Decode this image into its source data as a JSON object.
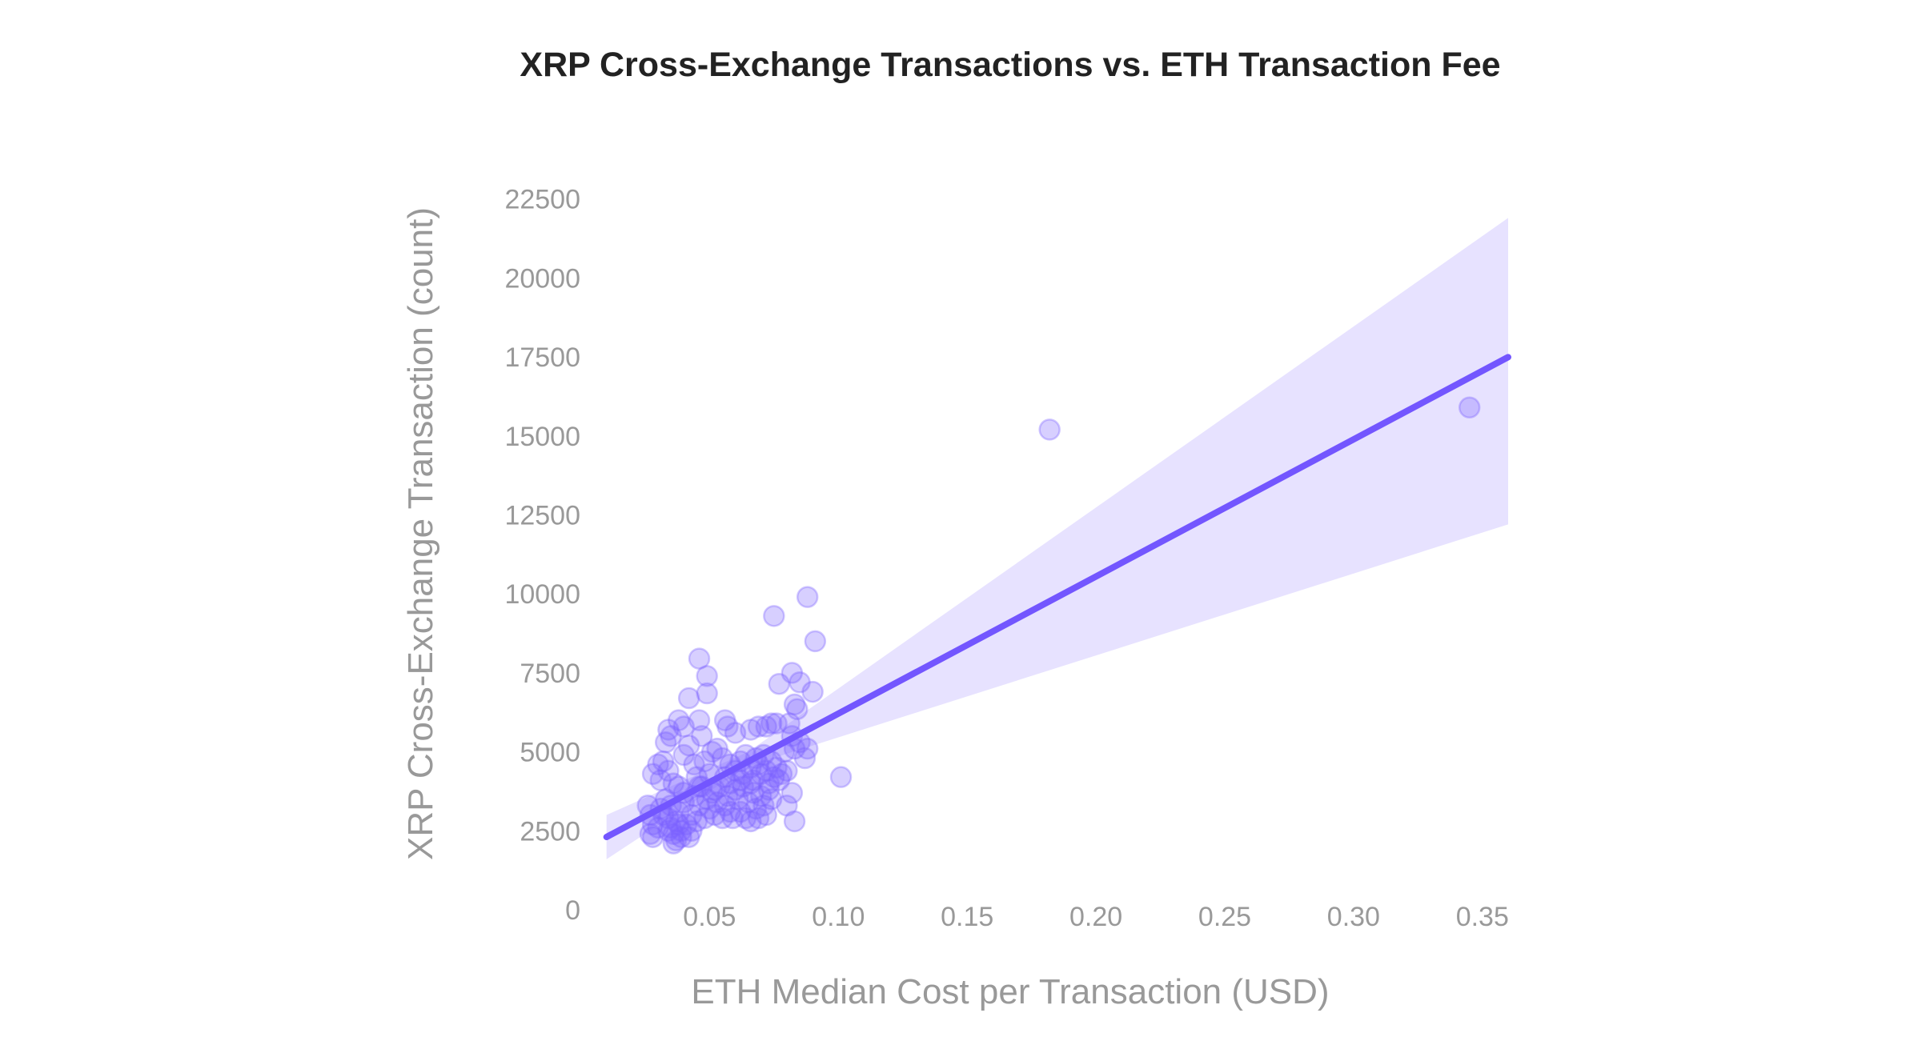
{
  "chart_data": {
    "type": "scatter",
    "title": "XRP Cross-Exchange Transactions vs. ETH Transaction Fee",
    "xlabel": "ETH Median Cost per Transaction (USD)",
    "ylabel": "XRP Cross-Exchange Transaction (count)",
    "xlim": [
      0,
      0.36
    ],
    "ylim": [
      0,
      22500
    ],
    "xticks": [
      "0.05",
      "0.10",
      "0.15",
      "0.20",
      "0.25",
      "0.30",
      "0.35"
    ],
    "xtick_values": [
      0.05,
      0.1,
      0.15,
      0.2,
      0.25,
      0.3,
      0.35
    ],
    "yticks": [
      "0",
      "2500",
      "5000",
      "7500",
      "10000",
      "12500",
      "15000",
      "17500",
      "20000",
      "22500"
    ],
    "ytick_values": [
      0,
      2500,
      5000,
      7500,
      10000,
      12500,
      15000,
      17500,
      20000,
      22500
    ],
    "grid": false,
    "colors": {
      "points": "#7b61ff",
      "line": "#7356ff",
      "band": "#e7e2ff",
      "text": "#999999",
      "title": "#222222"
    },
    "regression": {
      "x_range": [
        0.01,
        0.36
      ],
      "intercept": 1870,
      "slope": 43400,
      "ci_lower": [
        [
          0.01,
          1600
        ],
        [
          0.065,
          4550
        ],
        [
          0.36,
          12200
        ]
      ],
      "ci_upper": [
        [
          0.01,
          3000
        ],
        [
          0.065,
          5000
        ],
        [
          0.36,
          21900
        ]
      ]
    },
    "points": [
      [
        0.182,
        15200
      ],
      [
        0.345,
        15900
      ],
      [
        0.101,
        4200
      ],
      [
        0.088,
        9900
      ],
      [
        0.075,
        9300
      ],
      [
        0.091,
        8500
      ],
      [
        0.046,
        7950
      ],
      [
        0.049,
        7400
      ],
      [
        0.049,
        6850
      ],
      [
        0.042,
        6700
      ],
      [
        0.082,
        7500
      ],
      [
        0.077,
        7150
      ],
      [
        0.085,
        7200
      ],
      [
        0.09,
        6900
      ],
      [
        0.083,
        6500
      ],
      [
        0.084,
        6350
      ],
      [
        0.083,
        2800
      ],
      [
        0.082,
        3700
      ],
      [
        0.08,
        3300
      ],
      [
        0.034,
        5700
      ],
      [
        0.035,
        5500
      ],
      [
        0.033,
        5300
      ],
      [
        0.038,
        6000
      ],
      [
        0.04,
        5800
      ],
      [
        0.046,
        6000
      ],
      [
        0.047,
        5500
      ],
      [
        0.056,
        6000
      ],
      [
        0.057,
        5800
      ],
      [
        0.06,
        5600
      ],
      [
        0.066,
        5700
      ],
      [
        0.069,
        5800
      ],
      [
        0.072,
        5800
      ],
      [
        0.074,
        5900
      ],
      [
        0.076,
        5900
      ],
      [
        0.081,
        5900
      ],
      [
        0.082,
        5500
      ],
      [
        0.085,
        5300
      ],
      [
        0.088,
        5100
      ],
      [
        0.087,
        4800
      ],
      [
        0.08,
        4400
      ],
      [
        0.078,
        4300
      ],
      [
        0.075,
        4200
      ],
      [
        0.083,
        5100
      ],
      [
        0.079,
        5000
      ],
      [
        0.028,
        4300
      ],
      [
        0.03,
        4600
      ],
      [
        0.032,
        4700
      ],
      [
        0.031,
        4100
      ],
      [
        0.034,
        4400
      ],
      [
        0.036,
        4000
      ],
      [
        0.038,
        3900
      ],
      [
        0.04,
        4900
      ],
      [
        0.042,
        5200
      ],
      [
        0.044,
        4600
      ],
      [
        0.045,
        4200
      ],
      [
        0.048,
        4700
      ],
      [
        0.05,
        4300
      ],
      [
        0.051,
        5000
      ],
      [
        0.053,
        5100
      ],
      [
        0.055,
        4800
      ],
      [
        0.056,
        4200
      ],
      [
        0.058,
        4600
      ],
      [
        0.06,
        4400
      ],
      [
        0.062,
        4700
      ],
      [
        0.063,
        4300
      ],
      [
        0.064,
        4900
      ],
      [
        0.066,
        4500
      ],
      [
        0.067,
        4100
      ],
      [
        0.068,
        4800
      ],
      [
        0.069,
        4600
      ],
      [
        0.07,
        4300
      ],
      [
        0.071,
        4900
      ],
      [
        0.072,
        4400
      ],
      [
        0.073,
        4000
      ],
      [
        0.074,
        4700
      ],
      [
        0.076,
        4500
      ],
      [
        0.077,
        4100
      ],
      [
        0.026,
        3300
      ],
      [
        0.027,
        3000
      ],
      [
        0.028,
        2700
      ],
      [
        0.027,
        2400
      ],
      [
        0.028,
        2300
      ],
      [
        0.03,
        2600
      ],
      [
        0.031,
        3200
      ],
      [
        0.033,
        3500
      ],
      [
        0.034,
        2900
      ],
      [
        0.035,
        2600
      ],
      [
        0.036,
        2400
      ],
      [
        0.036,
        2100
      ],
      [
        0.037,
        2800
      ],
      [
        0.038,
        3100
      ],
      [
        0.039,
        2500
      ],
      [
        0.04,
        3400
      ],
      [
        0.041,
        2700
      ],
      [
        0.042,
        2300
      ],
      [
        0.043,
        3000
      ],
      [
        0.044,
        3600
      ],
      [
        0.045,
        2800
      ],
      [
        0.046,
        3300
      ],
      [
        0.047,
        3900
      ],
      [
        0.048,
        2900
      ],
      [
        0.049,
        3500
      ],
      [
        0.05,
        3200
      ],
      [
        0.051,
        3700
      ],
      [
        0.052,
        3000
      ],
      [
        0.053,
        3400
      ],
      [
        0.054,
        3900
      ],
      [
        0.055,
        2900
      ],
      [
        0.056,
        3300
      ],
      [
        0.057,
        3600
      ],
      [
        0.058,
        3100
      ],
      [
        0.059,
        2900
      ],
      [
        0.06,
        3800
      ],
      [
        0.061,
        3500
      ],
      [
        0.062,
        3100
      ],
      [
        0.063,
        3900
      ],
      [
        0.064,
        2900
      ],
      [
        0.065,
        3400
      ],
      [
        0.066,
        2800
      ],
      [
        0.067,
        3700
      ],
      [
        0.068,
        3200
      ],
      [
        0.069,
        2900
      ],
      [
        0.07,
        3600
      ],
      [
        0.071,
        3300
      ],
      [
        0.072,
        3000
      ],
      [
        0.073,
        3800
      ],
      [
        0.074,
        3500
      ],
      [
        0.066,
        4000
      ],
      [
        0.062,
        4100
      ],
      [
        0.058,
        4000
      ],
      [
        0.052,
        3800
      ],
      [
        0.046,
        3900
      ],
      [
        0.04,
        3700
      ],
      [
        0.035,
        3300
      ],
      [
        0.032,
        3000
      ],
      [
        0.038,
        2700
      ],
      [
        0.043,
        2500
      ],
      [
        0.039,
        2300
      ],
      [
        0.034,
        2500
      ],
      [
        0.037,
        2200
      ]
    ]
  }
}
